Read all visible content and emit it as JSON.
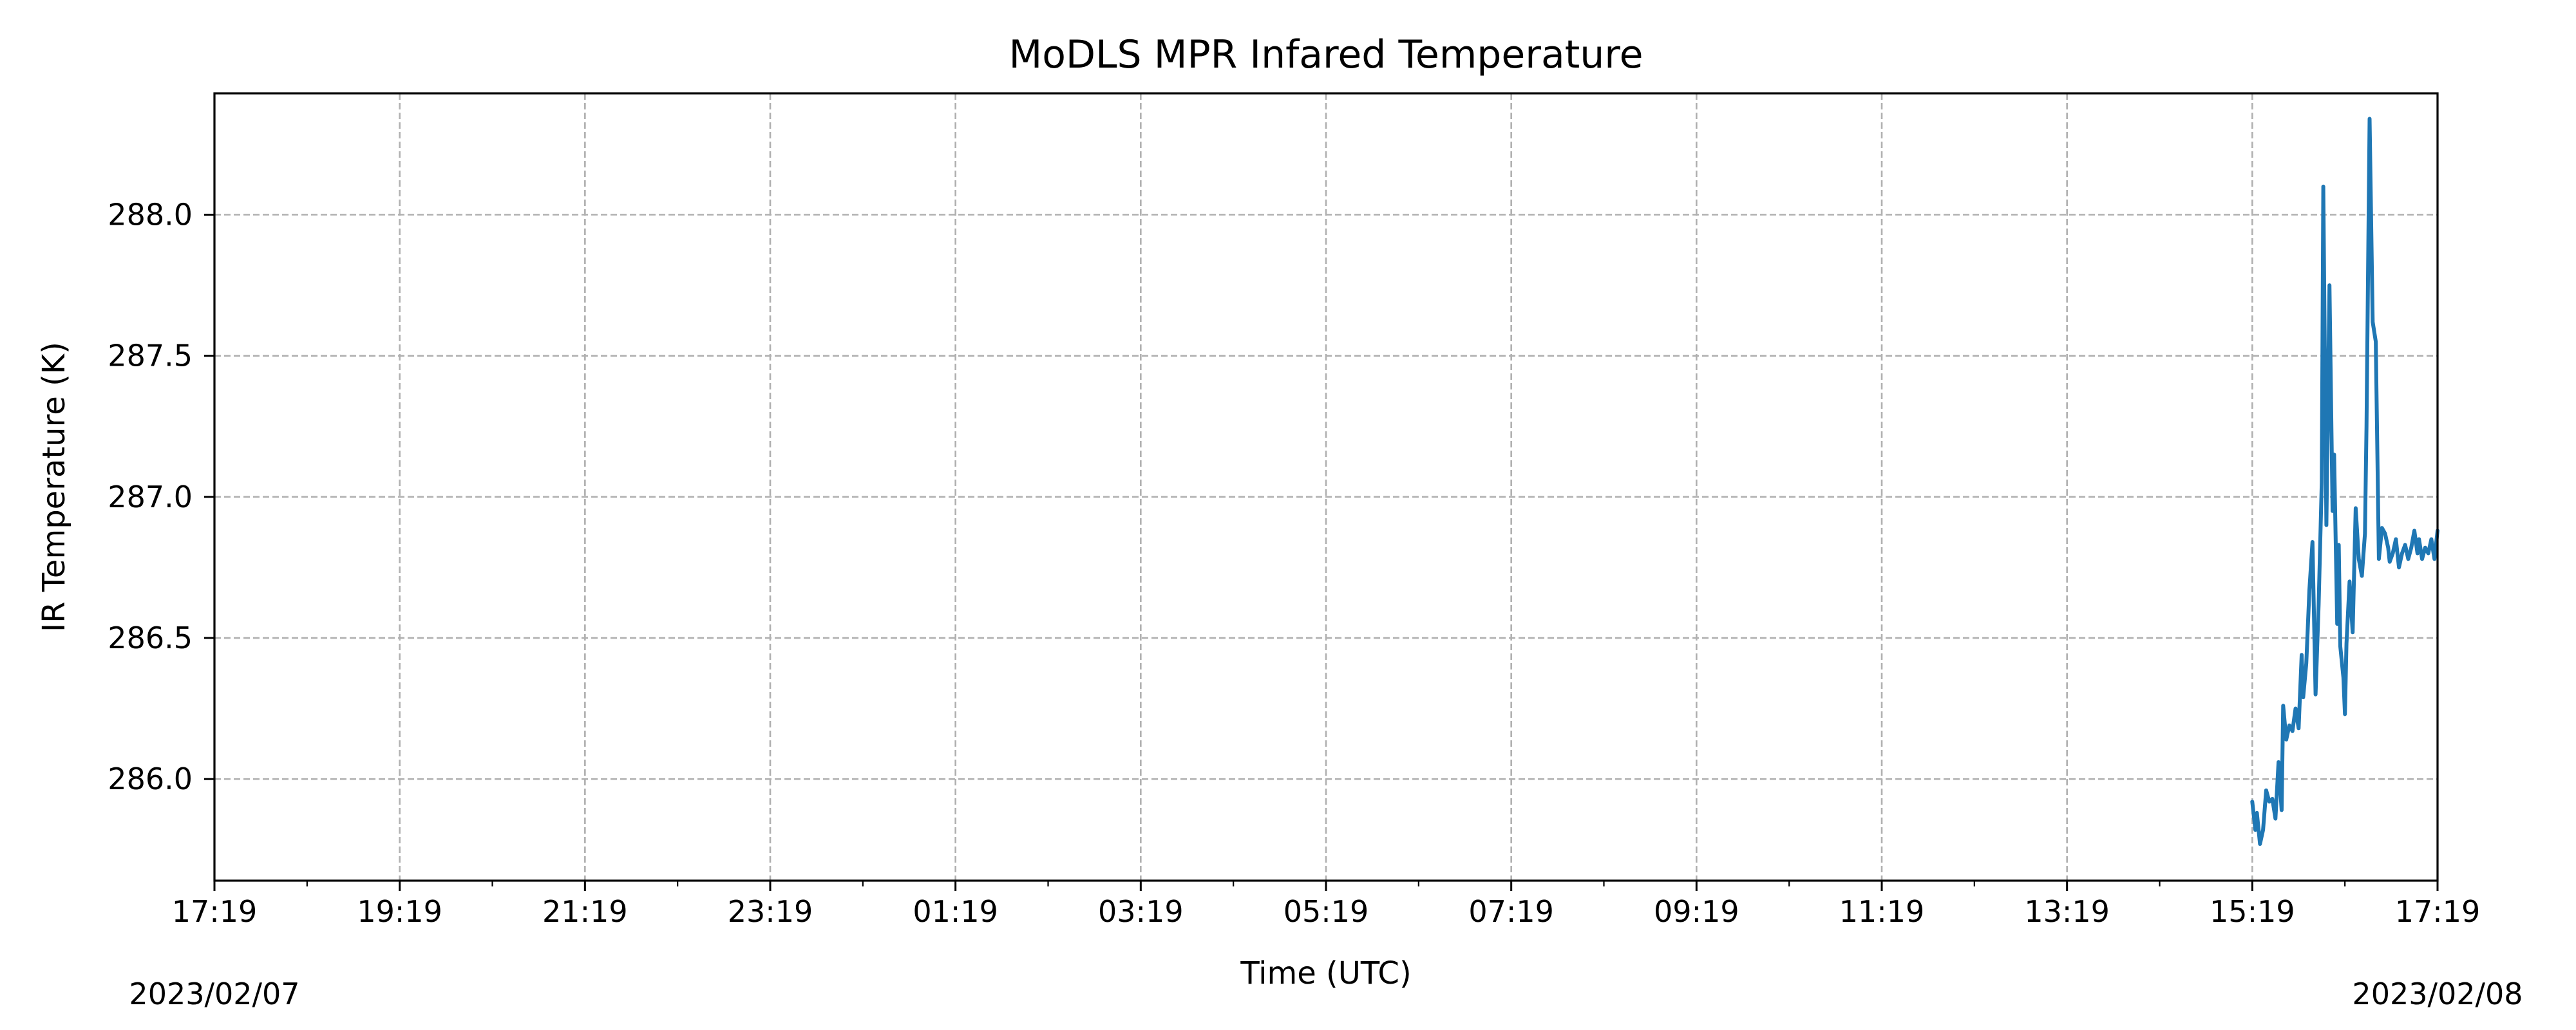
{
  "chart_data": {
    "type": "line",
    "title": "MoDLS MPR Infared Temperature",
    "xlabel": "Time (UTC)",
    "ylabel": "IR Temperature (K)",
    "x_start": "2023/02/07 17:19",
    "x_end": "2023/02/08 17:19",
    "xlim": [
      "2023-02-07T17:19",
      "2023-02-08T17:19"
    ],
    "ylim": [
      285.64,
      288.43
    ],
    "x_ticks": [
      {
        "t": "2023-02-07T17:19",
        "label": "17:19"
      },
      {
        "t": "2023-02-07T19:19",
        "label": "19:19"
      },
      {
        "t": "2023-02-07T21:19",
        "label": "21:19"
      },
      {
        "t": "2023-02-07T23:19",
        "label": "23:19"
      },
      {
        "t": "2023-02-08T01:19",
        "label": "01:19"
      },
      {
        "t": "2023-02-08T03:19",
        "label": "03:19"
      },
      {
        "t": "2023-02-08T05:19",
        "label": "05:19"
      },
      {
        "t": "2023-02-08T07:19",
        "label": "07:19"
      },
      {
        "t": "2023-02-08T09:19",
        "label": "09:19"
      },
      {
        "t": "2023-02-08T11:19",
        "label": "11:19"
      },
      {
        "t": "2023-02-08T13:19",
        "label": "13:19"
      },
      {
        "t": "2023-02-08T15:19",
        "label": "15:19"
      },
      {
        "t": "2023-02-08T17:19",
        "label": "17:19"
      }
    ],
    "date_labels": [
      "2023/02/07",
      "2023/02/08"
    ],
    "y_ticks": [
      286.0,
      286.5,
      287.0,
      287.5,
      288.0
    ],
    "y_tick_labels": [
      "286.0",
      "286.5",
      "287.0",
      "287.5",
      "288.0"
    ],
    "grid": true,
    "series": [
      {
        "color": "#1f77b4",
        "x": [
          "2023-02-08T15:19",
          "2023-02-08T15:21",
          "2023-02-08T15:22",
          "2023-02-08T15:24",
          "2023-02-08T15:26",
          "2023-02-08T15:28",
          "2023-02-08T15:30",
          "2023-02-08T15:32",
          "2023-02-08T15:34",
          "2023-02-08T15:36",
          "2023-02-08T15:38",
          "2023-02-08T15:39",
          "2023-02-08T15:41",
          "2023-02-08T15:43",
          "2023-02-08T15:45",
          "2023-02-08T15:47",
          "2023-02-08T15:49",
          "2023-02-08T15:51",
          "2023-02-08T15:52",
          "2023-02-08T15:54",
          "2023-02-08T15:56",
          "2023-02-08T15:58",
          "2023-02-08T16:00",
          "2023-02-08T16:02",
          "2023-02-08T16:04",
          "2023-02-08T16:05",
          "2023-02-08T16:07",
          "2023-02-08T16:09",
          "2023-02-08T16:11",
          "2023-02-08T16:12",
          "2023-02-08T16:14",
          "2023-02-08T16:15",
          "2023-02-08T16:16",
          "2023-02-08T16:18",
          "2023-02-08T16:19",
          "2023-02-08T16:20",
          "2023-02-08T16:22",
          "2023-02-08T16:24",
          "2023-02-08T16:26",
          "2023-02-08T16:28",
          "2023-02-08T16:30",
          "2023-02-08T16:32",
          "2023-02-08T16:33",
          "2023-02-08T16:35",
          "2023-02-08T16:37",
          "2023-02-08T16:39",
          "2023-02-08T16:41",
          "2023-02-08T16:43",
          "2023-02-08T16:45",
          "2023-02-08T16:47",
          "2023-02-08T16:48",
          "2023-02-08T16:50",
          "2023-02-08T16:52",
          "2023-02-08T16:54",
          "2023-02-08T16:56",
          "2023-02-08T16:58",
          "2023-02-08T17:00",
          "2023-02-08T17:02",
          "2023-02-08T17:04",
          "2023-02-08T17:06",
          "2023-02-08T17:07",
          "2023-02-08T17:09",
          "2023-02-08T17:11",
          "2023-02-08T17:13",
          "2023-02-08T17:15",
          "2023-02-08T17:17",
          "2023-02-08T17:19"
        ],
        "y": [
          285.92,
          285.82,
          285.88,
          285.77,
          285.82,
          285.96,
          285.92,
          285.93,
          285.86,
          286.06,
          285.89,
          286.26,
          286.14,
          286.19,
          286.17,
          286.25,
          286.18,
          286.44,
          286.29,
          286.41,
          286.67,
          286.84,
          286.3,
          286.62,
          287.05,
          288.1,
          286.9,
          287.75,
          286.95,
          287.15,
          286.55,
          286.83,
          286.47,
          286.36,
          286.23,
          286.48,
          286.7,
          286.52,
          286.96,
          286.78,
          286.72,
          286.87,
          287.25,
          288.34,
          287.62,
          287.55,
          286.78,
          286.89,
          286.87,
          286.82,
          286.77,
          286.8,
          286.85,
          286.75,
          286.8,
          286.83,
          286.78,
          286.82,
          286.88,
          286.8,
          286.85,
          286.78,
          286.82,
          286.8,
          286.85,
          286.78,
          286.88
        ]
      }
    ]
  }
}
